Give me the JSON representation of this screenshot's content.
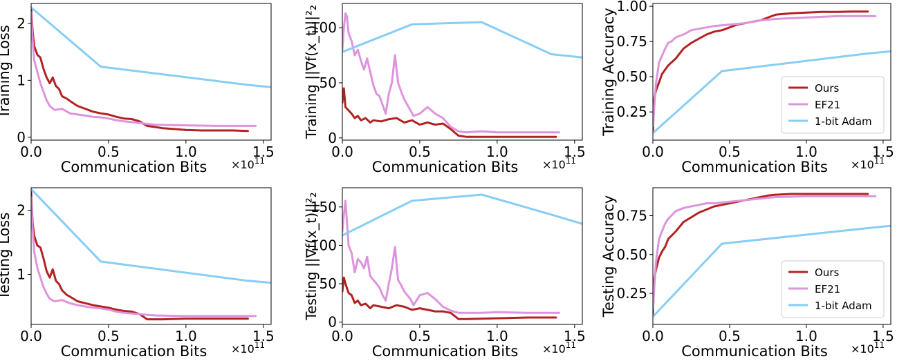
{
  "colors": {
    "ours": "#b22222",
    "ef21": "#dd94dc",
    "adam": "#87cdf5"
  },
  "chart_data": [
    {
      "type": "line",
      "xlabel": "Communication Bits",
      "ylabel": "Training Loss",
      "exponent": "×10",
      "exponent_power": "11",
      "xlim": [
        0,
        1.55
      ],
      "ylim": [
        -0.05,
        2.35
      ],
      "xticks": [
        0.0,
        0.5,
        1.0,
        1.5
      ],
      "xtick_labels": [
        "0.0",
        "0.5",
        "1.0",
        "1.5"
      ],
      "yticks": [
        0,
        1,
        2
      ],
      "ytick_labels": [
        "0",
        "1",
        "2"
      ],
      "series": [
        {
          "key": "ours",
          "x": [
            0,
            0.01,
            0.02,
            0.04,
            0.06,
            0.08,
            0.1,
            0.12,
            0.14,
            0.16,
            0.18,
            0.2,
            0.23,
            0.26,
            0.3,
            0.35,
            0.4,
            0.45,
            0.5,
            0.55,
            0.6,
            0.65,
            0.7,
            0.75,
            0.85,
            1.0,
            1.1,
            1.2,
            1.3,
            1.4
          ],
          "y": [
            2.28,
            1.85,
            1.6,
            1.45,
            1.4,
            1.2,
            1.05,
            0.95,
            1.05,
            0.9,
            0.85,
            0.72,
            0.68,
            0.62,
            0.55,
            0.5,
            0.45,
            0.42,
            0.4,
            0.36,
            0.33,
            0.32,
            0.28,
            0.2,
            0.16,
            0.13,
            0.12,
            0.12,
            0.12,
            0.11
          ]
        },
        {
          "key": "ef21",
          "x": [
            0,
            0.01,
            0.02,
            0.04,
            0.06,
            0.08,
            0.1,
            0.12,
            0.15,
            0.2,
            0.25,
            0.3,
            0.35,
            0.4,
            0.45,
            0.5,
            0.55,
            0.6,
            0.7,
            0.8,
            1.0,
            1.2,
            1.45
          ],
          "y": [
            2.2,
            1.7,
            1.35,
            1.15,
            0.95,
            0.8,
            0.65,
            0.55,
            0.48,
            0.5,
            0.42,
            0.4,
            0.38,
            0.36,
            0.35,
            0.33,
            0.3,
            0.28,
            0.25,
            0.22,
            0.21,
            0.2,
            0.2
          ]
        },
        {
          "key": "adam",
          "x": [
            0,
            0.45,
            1.4,
            1.55
          ],
          "y": [
            2.28,
            1.24,
            0.92,
            0.88
          ]
        }
      ]
    },
    {
      "type": "line",
      "xlabel": "Communication Bits",
      "ylabel": "Training ||∇f(x_t)||²₂",
      "exponent": "×10",
      "exponent_power": "11",
      "xlim": [
        0,
        1.55
      ],
      "ylim": [
        -2,
        122
      ],
      "xticks": [
        0.0,
        0.5,
        1.0,
        1.5
      ],
      "xtick_labels": [
        "0.0",
        "0.5",
        "1.0",
        "1.5"
      ],
      "yticks": [
        0,
        50,
        100
      ],
      "ytick_labels": [
        "0",
        "50",
        "100"
      ],
      "series": [
        {
          "key": "ours",
          "x": [
            0,
            0.01,
            0.02,
            0.04,
            0.06,
            0.08,
            0.1,
            0.12,
            0.15,
            0.18,
            0.2,
            0.25,
            0.3,
            0.35,
            0.4,
            0.45,
            0.5,
            0.55,
            0.6,
            0.65,
            0.7,
            0.75,
            0.8,
            1.0,
            1.2,
            1.38
          ],
          "y": [
            32,
            45,
            28,
            25,
            22,
            18,
            20,
            16,
            18,
            14,
            16,
            15,
            17,
            18,
            14,
            16,
            12,
            14,
            12,
            13,
            8,
            2,
            1,
            1,
            1,
            1
          ]
        },
        {
          "key": "ef21",
          "x": [
            0,
            0.01,
            0.02,
            0.03,
            0.04,
            0.06,
            0.08,
            0.1,
            0.12,
            0.14,
            0.16,
            0.18,
            0.2,
            0.22,
            0.24,
            0.26,
            0.28,
            0.3,
            0.32,
            0.34,
            0.36,
            0.38,
            0.4,
            0.42,
            0.44,
            0.46,
            0.5,
            0.55,
            0.6,
            0.65,
            0.7,
            0.75,
            0.8,
            0.9,
            1.0,
            1.2,
            1.4
          ],
          "y": [
            80,
            100,
            113,
            110,
            95,
            88,
            75,
            80,
            70,
            62,
            72,
            60,
            48,
            40,
            38,
            30,
            22,
            40,
            50,
            75,
            50,
            42,
            35,
            30,
            25,
            20,
            22,
            28,
            22,
            18,
            10,
            6,
            5,
            6,
            5,
            5,
            5
          ]
        },
        {
          "key": "adam",
          "x": [
            0,
            0.45,
            0.9,
            1.35,
            1.55
          ],
          "y": [
            78,
            103,
            105,
            76,
            73
          ]
        }
      ]
    },
    {
      "type": "line",
      "xlabel": "Communication Bits",
      "ylabel": "Training Accuracy",
      "exponent": "×10",
      "exponent_power": "11",
      "xlim": [
        0,
        1.55
      ],
      "ylim": [
        0.05,
        1.02
      ],
      "xticks": [
        0.0,
        0.5,
        1.0,
        1.5
      ],
      "xtick_labels": [
        "0.0",
        "0.5",
        "1.0",
        "1.5"
      ],
      "yticks": [
        0.25,
        0.5,
        0.75,
        1.0
      ],
      "ytick_labels": [
        "0.25",
        "0.50",
        "0.75",
        "1.00"
      ],
      "legend": {
        "position": "lower-right",
        "labels": [
          "Ours",
          "EF21",
          "1-bit Adam"
        ]
      },
      "series": [
        {
          "key": "ours",
          "x": [
            0,
            0.01,
            0.02,
            0.04,
            0.06,
            0.08,
            0.1,
            0.12,
            0.15,
            0.2,
            0.25,
            0.3,
            0.35,
            0.4,
            0.45,
            0.5,
            0.55,
            0.6,
            0.65,
            0.7,
            0.75,
            0.8,
            0.9,
            1.0,
            1.1,
            1.2,
            1.3,
            1.4
          ],
          "y": [
            0.12,
            0.35,
            0.4,
            0.46,
            0.52,
            0.55,
            0.58,
            0.6,
            0.63,
            0.7,
            0.74,
            0.77,
            0.8,
            0.82,
            0.83,
            0.85,
            0.87,
            0.88,
            0.89,
            0.9,
            0.92,
            0.94,
            0.95,
            0.955,
            0.96,
            0.96,
            0.962,
            0.962
          ]
        },
        {
          "key": "ef21",
          "x": [
            0,
            0.01,
            0.02,
            0.04,
            0.06,
            0.08,
            0.1,
            0.12,
            0.15,
            0.2,
            0.25,
            0.3,
            0.35,
            0.4,
            0.5,
            0.6,
            0.7,
            0.8,
            1.0,
            1.2,
            1.45
          ],
          "y": [
            0.15,
            0.3,
            0.45,
            0.6,
            0.65,
            0.7,
            0.74,
            0.75,
            0.78,
            0.8,
            0.83,
            0.84,
            0.85,
            0.86,
            0.87,
            0.88,
            0.9,
            0.91,
            0.92,
            0.93,
            0.93
          ]
        },
        {
          "key": "adam",
          "x": [
            0,
            0.45,
            1.4,
            1.55
          ],
          "y": [
            0.1,
            0.54,
            0.665,
            0.68
          ]
        }
      ]
    },
    {
      "type": "line",
      "xlabel": "Communication Bits",
      "ylabel": "Testing Loss",
      "exponent": "×10",
      "exponent_power": "11",
      "xlim": [
        0,
        1.55
      ],
      "ylim": [
        0.22,
        2.35
      ],
      "xticks": [
        0.0,
        0.5,
        1.0,
        1.5
      ],
      "xtick_labels": [
        "0.0",
        "0.5",
        "1.0",
        "1.5"
      ],
      "yticks": [
        1,
        2
      ],
      "ytick_labels": [
        "1",
        "2"
      ],
      "series": [
        {
          "key": "ours",
          "x": [
            0,
            0.01,
            0.02,
            0.04,
            0.06,
            0.08,
            0.1,
            0.12,
            0.14,
            0.16,
            0.18,
            0.2,
            0.23,
            0.26,
            0.3,
            0.35,
            0.4,
            0.45,
            0.5,
            0.55,
            0.6,
            0.65,
            0.7,
            0.75,
            0.85,
            1.0,
            1.2,
            1.4
          ],
          "y": [
            2.28,
            1.8,
            1.6,
            1.45,
            1.42,
            1.25,
            1.05,
            0.95,
            1.08,
            0.9,
            0.85,
            0.75,
            0.68,
            0.64,
            0.58,
            0.55,
            0.52,
            0.5,
            0.48,
            0.45,
            0.43,
            0.42,
            0.38,
            0.3,
            0.3,
            0.31,
            0.31,
            0.31
          ]
        },
        {
          "key": "ef21",
          "x": [
            0,
            0.01,
            0.02,
            0.04,
            0.06,
            0.08,
            0.1,
            0.12,
            0.15,
            0.2,
            0.25,
            0.3,
            0.35,
            0.4,
            0.45,
            0.5,
            0.55,
            0.6,
            0.7,
            0.8,
            1.0,
            1.2,
            1.45
          ],
          "y": [
            2.2,
            1.7,
            1.35,
            1.1,
            0.95,
            0.8,
            0.7,
            0.62,
            0.58,
            0.6,
            0.55,
            0.52,
            0.5,
            0.48,
            0.47,
            0.45,
            0.42,
            0.4,
            0.38,
            0.36,
            0.35,
            0.35,
            0.35
          ]
        },
        {
          "key": "adam",
          "x": [
            0,
            0.45,
            1.4,
            1.55
          ],
          "y": [
            2.33,
            1.2,
            0.9,
            0.87
          ]
        }
      ]
    },
    {
      "type": "line",
      "xlabel": "Communication Bits",
      "ylabel": "Testing ||∇f(x_t)||²₂",
      "exponent": "×10",
      "exponent_power": "11",
      "xlim": [
        0,
        1.55
      ],
      "ylim": [
        -3,
        175
      ],
      "xticks": [
        0.0,
        0.5,
        1.0,
        1.5
      ],
      "xtick_labels": [
        "0.0",
        "0.5",
        "1.0",
        "1.5"
      ],
      "yticks": [
        0,
        50,
        100,
        150
      ],
      "ytick_labels": [
        "0",
        "50",
        "100",
        "150"
      ],
      "series": [
        {
          "key": "ours",
          "x": [
            0,
            0.01,
            0.02,
            0.04,
            0.06,
            0.08,
            0.1,
            0.12,
            0.15,
            0.18,
            0.2,
            0.25,
            0.3,
            0.35,
            0.4,
            0.45,
            0.5,
            0.55,
            0.6,
            0.65,
            0.7,
            0.75,
            0.8,
            1.0,
            1.2,
            1.38
          ],
          "y": [
            40,
            58,
            50,
            38,
            35,
            25,
            28,
            22,
            24,
            18,
            22,
            20,
            18,
            22,
            20,
            16,
            18,
            16,
            14,
            14,
            12,
            4,
            4,
            5,
            6,
            6
          ]
        },
        {
          "key": "ef21",
          "x": [
            0,
            0.01,
            0.02,
            0.03,
            0.04,
            0.06,
            0.08,
            0.1,
            0.12,
            0.14,
            0.16,
            0.18,
            0.2,
            0.22,
            0.24,
            0.26,
            0.28,
            0.3,
            0.32,
            0.34,
            0.36,
            0.38,
            0.4,
            0.42,
            0.44,
            0.46,
            0.5,
            0.55,
            0.6,
            0.65,
            0.7,
            0.75,
            0.8,
            0.9,
            1.0,
            1.2,
            1.4
          ],
          "y": [
            118,
            140,
            158,
            130,
            100,
            90,
            65,
            82,
            78,
            70,
            85,
            60,
            55,
            50,
            45,
            35,
            28,
            50,
            70,
            98,
            55,
            48,
            40,
            35,
            30,
            22,
            35,
            38,
            30,
            20,
            15,
            12,
            12,
            12,
            13,
            12,
            12
          ]
        },
        {
          "key": "adam",
          "x": [
            0,
            0.45,
            0.9,
            1.35,
            1.55
          ],
          "y": [
            113,
            158,
            166,
            140,
            128
          ]
        }
      ]
    },
    {
      "type": "line",
      "xlabel": "Communication Bits",
      "ylabel": "Testing Accuracy",
      "exponent": "×10",
      "exponent_power": "11",
      "xlim": [
        0,
        1.55
      ],
      "ylim": [
        0.05,
        0.93
      ],
      "xticks": [
        0.0,
        0.5,
        1.0,
        1.5
      ],
      "xtick_labels": [
        "0.0",
        "0.5",
        "1.0",
        "1.5"
      ],
      "yticks": [
        0.25,
        0.5,
        0.75
      ],
      "ytick_labels": [
        "0.25",
        "0.50",
        "0.75"
      ],
      "legend": {
        "position": "lower-right",
        "labels": [
          "Ours",
          "EF21",
          "1-bit Adam"
        ]
      },
      "series": [
        {
          "key": "ours",
          "x": [
            0,
            0.01,
            0.02,
            0.04,
            0.06,
            0.08,
            0.1,
            0.12,
            0.15,
            0.2,
            0.25,
            0.3,
            0.35,
            0.4,
            0.45,
            0.5,
            0.55,
            0.6,
            0.65,
            0.7,
            0.75,
            0.8,
            0.9,
            1.0,
            1.1,
            1.2,
            1.3,
            1.4
          ],
          "y": [
            0.12,
            0.35,
            0.4,
            0.48,
            0.52,
            0.55,
            0.6,
            0.62,
            0.65,
            0.71,
            0.74,
            0.77,
            0.79,
            0.81,
            0.82,
            0.83,
            0.84,
            0.85,
            0.86,
            0.87,
            0.88,
            0.885,
            0.89,
            0.89,
            0.89,
            0.89,
            0.89,
            0.89
          ]
        },
        {
          "key": "ef21",
          "x": [
            0,
            0.01,
            0.02,
            0.04,
            0.06,
            0.08,
            0.1,
            0.12,
            0.15,
            0.2,
            0.25,
            0.3,
            0.35,
            0.4,
            0.5,
            0.6,
            0.7,
            0.8,
            1.0,
            1.2,
            1.45
          ],
          "y": [
            0.15,
            0.3,
            0.45,
            0.6,
            0.65,
            0.7,
            0.73,
            0.75,
            0.78,
            0.8,
            0.81,
            0.82,
            0.83,
            0.83,
            0.84,
            0.85,
            0.86,
            0.87,
            0.875,
            0.875,
            0.875
          ]
        },
        {
          "key": "adam",
          "x": [
            0,
            0.45,
            1.4,
            1.55
          ],
          "y": [
            0.1,
            0.57,
            0.67,
            0.685
          ]
        }
      ]
    }
  ]
}
